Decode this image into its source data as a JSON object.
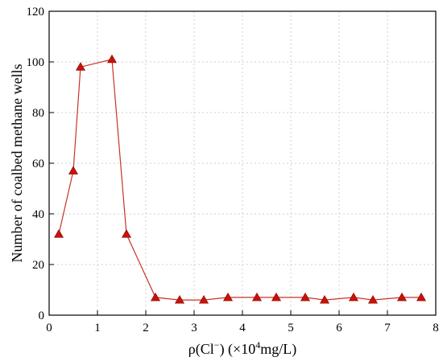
{
  "chart_data": {
    "type": "line",
    "title": "",
    "xlabel": {
      "main": "ρ(Cl",
      "sup1": "−",
      "mid": ") (×10",
      "sup2": "4",
      "unit": "mg/L)"
    },
    "ylabel": "Number of coalbed methane wells",
    "xlim": [
      0,
      8
    ],
    "ylim": [
      0,
      120
    ],
    "x_ticks": [
      "0",
      "1",
      "2",
      "3",
      "4",
      "5",
      "6",
      "7",
      "8"
    ],
    "y_ticks": [
      "0",
      "20",
      "40",
      "60",
      "80",
      "100",
      "120"
    ],
    "grid": true,
    "colors": {
      "line": "#c8322b",
      "marker": "#c8120a",
      "grid": "#cfcfcf"
    },
    "series": [
      {
        "x": [
          0.2,
          0.5,
          0.65,
          1.3,
          1.6,
          2.2,
          2.7,
          3.2,
          3.7,
          4.3,
          4.7,
          5.3,
          5.7,
          6.3,
          6.7,
          7.3,
          7.7
        ],
        "y": [
          32,
          57,
          98,
          101,
          32,
          7,
          6,
          6,
          7,
          7,
          7,
          7,
          6,
          7,
          6,
          7,
          7
        ]
      }
    ]
  }
}
